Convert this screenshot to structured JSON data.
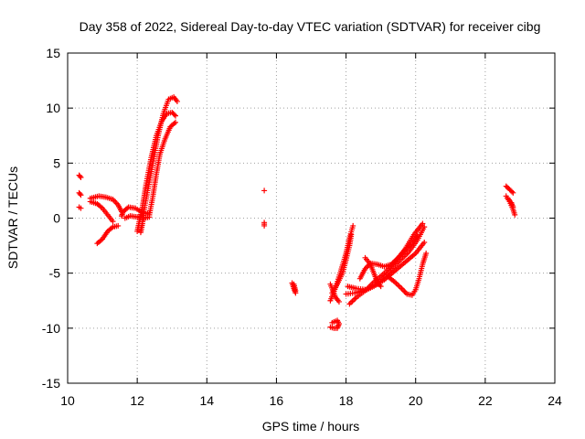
{
  "chart_data": {
    "type": "scatter",
    "title": "Day 358 of 2022, Sidereal Day-to-day VTEC variation (SDTVAR) for receiver cibg",
    "xlabel": "GPS time / hours",
    "ylabel": "SDTVAR / TECUs",
    "xlim": [
      10,
      24
    ],
    "ylim": [
      -15,
      15
    ],
    "xticks": [
      10,
      12,
      14,
      16,
      18,
      20,
      22,
      24
    ],
    "yticks": [
      -15,
      -10,
      -5,
      0,
      5,
      10,
      15
    ],
    "grid": true,
    "marker": "+",
    "color": "#ff0000",
    "segments": [
      {
        "points": [
          [
            10.33,
            3.9
          ],
          [
            10.38,
            3.7
          ]
        ]
      },
      {
        "points": [
          [
            10.33,
            2.3
          ],
          [
            10.38,
            2.1
          ]
        ]
      },
      {
        "points": [
          [
            10.33,
            1.0
          ],
          [
            10.38,
            0.9
          ]
        ]
      },
      {
        "points": [
          [
            10.65,
            1.8
          ],
          [
            10.9,
            2.0
          ],
          [
            11.1,
            1.9
          ],
          [
            11.3,
            1.7
          ],
          [
            11.45,
            1.2
          ],
          [
            11.55,
            0.6
          ]
        ]
      },
      {
        "points": [
          [
            10.65,
            1.5
          ],
          [
            10.85,
            1.3
          ],
          [
            11.0,
            0.9
          ],
          [
            11.15,
            0.3
          ],
          [
            11.3,
            -0.3
          ]
        ]
      },
      {
        "points": [
          [
            10.85,
            -2.3
          ],
          [
            11.0,
            -1.9
          ],
          [
            11.15,
            -1.2
          ],
          [
            11.3,
            -0.8
          ],
          [
            11.45,
            -0.7
          ]
        ]
      },
      {
        "points": [
          [
            11.55,
            0.2
          ],
          [
            11.6,
            0.6
          ],
          [
            11.75,
            1.0
          ],
          [
            11.95,
            0.9
          ],
          [
            12.1,
            0.6
          ],
          [
            12.25,
            0.4
          ],
          [
            12.35,
            0.5
          ]
        ]
      },
      {
        "points": [
          [
            11.65,
            0.0
          ],
          [
            11.8,
            0.2
          ],
          [
            12.0,
            0.1
          ],
          [
            12.2,
            0.0
          ],
          [
            12.35,
            0.1
          ]
        ]
      },
      {
        "points": [
          [
            12.1,
            -1.3
          ],
          [
            12.15,
            -0.5
          ],
          [
            12.2,
            0.8
          ],
          [
            12.3,
            2.5
          ],
          [
            12.45,
            5.0
          ],
          [
            12.6,
            7.5
          ],
          [
            12.75,
            9.5
          ],
          [
            12.9,
            10.8
          ],
          [
            13.05,
            11.0
          ],
          [
            13.15,
            10.6
          ]
        ]
      },
      {
        "points": [
          [
            12.0,
            -1.2
          ],
          [
            12.08,
            0.0
          ],
          [
            12.15,
            1.0
          ],
          [
            12.25,
            3.0
          ],
          [
            12.4,
            5.5
          ],
          [
            12.55,
            7.5
          ],
          [
            12.7,
            8.8
          ],
          [
            12.85,
            9.5
          ],
          [
            13.0,
            9.6
          ],
          [
            13.1,
            9.3
          ]
        ]
      },
      {
        "points": [
          [
            12.35,
            0.3
          ],
          [
            12.45,
            2.0
          ],
          [
            12.55,
            4.0
          ],
          [
            12.65,
            5.8
          ],
          [
            12.8,
            7.2
          ],
          [
            12.95,
            8.3
          ],
          [
            13.1,
            8.7
          ]
        ]
      },
      {
        "points": [
          [
            15.65,
            2.5
          ]
        ]
      },
      {
        "points": [
          [
            15.65,
            -0.4
          ],
          [
            15.65,
            -0.7
          ]
        ]
      },
      {
        "points": [
          [
            16.45,
            -5.9
          ],
          [
            16.5,
            -6.4
          ],
          [
            16.55,
            -6.8
          ]
        ]
      },
      {
        "points": [
          [
            16.5,
            -6.0
          ],
          [
            16.55,
            -6.6
          ]
        ]
      },
      {
        "points": [
          [
            17.55,
            -9.9
          ],
          [
            17.65,
            -10.0
          ],
          [
            17.75,
            -10.0
          ],
          [
            17.8,
            -9.6
          ],
          [
            17.75,
            -9.3
          ],
          [
            17.6,
            -9.5
          ]
        ]
      },
      {
        "points": [
          [
            17.55,
            -7.5
          ],
          [
            17.7,
            -6.3
          ],
          [
            17.85,
            -4.8
          ],
          [
            18.0,
            -3.2
          ],
          [
            18.1,
            -1.8
          ],
          [
            18.2,
            -0.7
          ]
        ]
      },
      {
        "points": [
          [
            17.6,
            -6.8
          ],
          [
            17.75,
            -6.0
          ],
          [
            17.9,
            -5.0
          ],
          [
            18.0,
            -3.8
          ],
          [
            18.1,
            -2.5
          ],
          [
            18.15,
            -1.5
          ]
        ]
      },
      {
        "points": [
          [
            17.55,
            -6.0
          ],
          [
            17.7,
            -7.2
          ],
          [
            17.8,
            -7.6
          ]
        ]
      },
      {
        "points": [
          [
            18.0,
            -6.9
          ],
          [
            18.25,
            -6.8
          ],
          [
            18.5,
            -6.6
          ],
          [
            18.8,
            -6.2
          ],
          [
            19.1,
            -5.6
          ],
          [
            19.4,
            -4.8
          ],
          [
            19.7,
            -4.0
          ],
          [
            20.0,
            -3.2
          ],
          [
            20.25,
            -2.2
          ]
        ]
      },
      {
        "points": [
          [
            18.05,
            -6.2
          ],
          [
            18.3,
            -6.4
          ],
          [
            18.6,
            -6.5
          ],
          [
            18.9,
            -6.0
          ],
          [
            19.2,
            -5.0
          ],
          [
            19.5,
            -4.0
          ],
          [
            19.8,
            -3.1
          ],
          [
            20.05,
            -2.0
          ],
          [
            20.25,
            -0.8
          ]
        ]
      },
      {
        "points": [
          [
            18.1,
            -7.8
          ],
          [
            18.3,
            -7.2
          ],
          [
            18.55,
            -6.6
          ],
          [
            18.8,
            -5.8
          ],
          [
            19.1,
            -5.0
          ],
          [
            19.4,
            -4.0
          ],
          [
            19.7,
            -2.8
          ],
          [
            19.95,
            -1.5
          ],
          [
            20.2,
            -0.5
          ]
        ]
      },
      {
        "points": [
          [
            18.4,
            -5.5
          ],
          [
            18.55,
            -4.6
          ],
          [
            18.7,
            -4.1
          ],
          [
            18.9,
            -4.2
          ],
          [
            19.1,
            -4.4
          ],
          [
            19.3,
            -4.2
          ],
          [
            19.5,
            -3.6
          ],
          [
            19.7,
            -2.9
          ],
          [
            19.9,
            -2.3
          ],
          [
            20.05,
            -1.6
          ]
        ]
      },
      {
        "points": [
          [
            18.55,
            -3.6
          ],
          [
            18.7,
            -4.2
          ],
          [
            18.8,
            -5.0
          ],
          [
            18.9,
            -5.8
          ],
          [
            19.0,
            -6.2
          ]
        ]
      },
      {
        "points": [
          [
            19.2,
            -5.3
          ],
          [
            19.4,
            -5.8
          ],
          [
            19.6,
            -6.4
          ],
          [
            19.75,
            -6.9
          ],
          [
            19.9,
            -7.0
          ],
          [
            20.0,
            -6.5
          ],
          [
            20.1,
            -5.5
          ],
          [
            20.2,
            -4.2
          ],
          [
            20.3,
            -3.2
          ]
        ]
      },
      {
        "points": [
          [
            22.6,
            2.9
          ],
          [
            22.7,
            2.6
          ],
          [
            22.8,
            2.3
          ]
        ]
      },
      {
        "points": [
          [
            22.6,
            2.0
          ],
          [
            22.7,
            1.5
          ],
          [
            22.8,
            0.8
          ],
          [
            22.85,
            0.3
          ]
        ]
      },
      {
        "points": [
          [
            22.65,
            1.8
          ],
          [
            22.75,
            1.4
          ],
          [
            22.8,
            1.0
          ]
        ]
      }
    ]
  }
}
